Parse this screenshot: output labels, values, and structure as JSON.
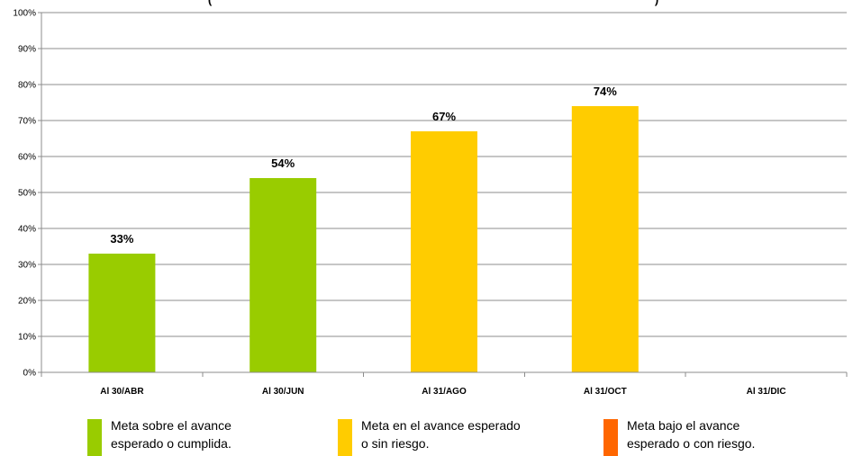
{
  "chart_data": {
    "type": "bar",
    "title": "(",
    "title_right": ")",
    "categories": [
      "Al 30/ABR",
      "Al 30/JUN",
      "Al 31/AGO",
      "Al 31/OCT",
      "Al 31/DIC"
    ],
    "values": [
      33,
      54,
      67,
      74,
      null
    ],
    "data_labels": [
      "33%",
      "54%",
      "67%",
      "74%",
      ""
    ],
    "bar_colors": [
      "#99CC00",
      "#99CC00",
      "#FFCC00",
      "#FFCC00",
      "#FF6600"
    ],
    "ylim": [
      0,
      100
    ],
    "yticks": [
      0,
      10,
      20,
      30,
      40,
      50,
      60,
      70,
      80,
      90,
      100
    ],
    "ytick_labels": [
      "0%",
      "10%",
      "20%",
      "30%",
      "40%",
      "50%",
      "60%",
      "70%",
      "80%",
      "90%",
      "100%"
    ],
    "grid": true,
    "legend_position": "bottom"
  },
  "legend": [
    {
      "color": "#99CC00",
      "line1": "Meta sobre el avance",
      "line2": "esperado o cumplida."
    },
    {
      "color": "#FFCC00",
      "line1": "Meta en el avance esperado",
      "line2": "o sin riesgo."
    },
    {
      "color": "#FF6600",
      "line1": "Meta bajo el avance",
      "line2": "esperado o con riesgo."
    }
  ]
}
